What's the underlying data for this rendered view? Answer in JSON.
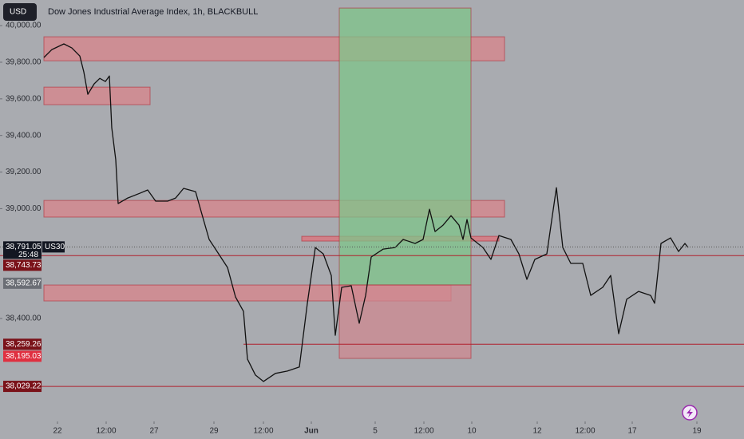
{
  "chart_data": {
    "type": "line",
    "title": "Dow Jones Industrial Average Index, 1h, BLACKBULL",
    "currency": "USD",
    "symbol": "US30",
    "countdown": "25:48",
    "color": "#111111",
    "xlim": [
      0,
      932
    ],
    "ylim": [
      37842,
      40140
    ],
    "yticks": [
      {
        "value": 40000,
        "label": "40,000.00"
      },
      {
        "value": 39800,
        "label": "39,800.00"
      },
      {
        "value": 39600,
        "label": "39,600.00"
      },
      {
        "value": 39400,
        "label": "39,400.00"
      },
      {
        "value": 39200,
        "label": "39,200.00"
      },
      {
        "value": 39000,
        "label": "39,000.00"
      },
      {
        "value": 38400,
        "label": "38,400.00"
      }
    ],
    "xticks": [
      {
        "value": 72,
        "label": "22"
      },
      {
        "value": 133,
        "label": "12:00"
      },
      {
        "value": 193,
        "label": "27"
      },
      {
        "value": 268,
        "label": "29"
      },
      {
        "value": 330,
        "label": "12:00"
      },
      {
        "value": 390,
        "label": "Jun"
      },
      {
        "value": 470,
        "label": "5"
      },
      {
        "value": 531,
        "label": "12:00"
      },
      {
        "value": 591,
        "label": "10"
      },
      {
        "value": 673,
        "label": "12"
      },
      {
        "value": 733,
        "label": "12:00"
      },
      {
        "value": 792,
        "label": "17"
      },
      {
        "value": 873,
        "label": "19"
      }
    ],
    "series": [
      {
        "color": "#111111",
        "x": [
          55,
          65,
          80,
          90,
          100,
          105,
          110,
          118,
          125,
          132,
          137,
          140,
          145,
          148,
          160,
          175,
          185,
          195,
          210,
          220,
          230,
          245,
          252,
          262,
          270,
          285,
          295,
          305,
          310,
          320,
          330,
          345,
          360,
          375,
          385,
          395,
          405,
          415,
          420,
          428,
          440,
          450,
          458,
          465,
          480,
          495,
          505,
          520,
          530,
          538,
          545,
          555,
          565,
          575,
          580,
          585,
          590,
          605,
          615,
          625,
          640,
          650,
          660,
          670,
          685,
          697,
          705,
          715,
          730,
          740,
          755,
          765,
          775,
          785,
          800,
          815,
          820,
          828,
          840,
          850,
          858,
          862
        ],
        "values": [
          39826,
          39869,
          39900,
          39878,
          39834,
          39747,
          39625,
          39682,
          39712,
          39695,
          39725,
          39442,
          39267,
          39028,
          39058,
          39084,
          39102,
          39041,
          39041,
          39058,
          39111,
          39093,
          38984,
          38832,
          38779,
          38679,
          38518,
          38439,
          38178,
          38091,
          38056,
          38100,
          38113,
          38135,
          38483,
          38788,
          38753,
          38635,
          38308,
          38570,
          38579,
          38374,
          38526,
          38736,
          38779,
          38788,
          38832,
          38810,
          38832,
          38997,
          38875,
          38910,
          38962,
          38910,
          38832,
          38941,
          38840,
          38788,
          38723,
          38853,
          38832,
          38753,
          38614,
          38723,
          38753,
          39115,
          38788,
          38701,
          38701,
          38526,
          38570,
          38635,
          38317,
          38505,
          38548,
          38526,
          38483,
          38810,
          38840,
          38766,
          38810,
          38788
        ]
      }
    ],
    "zones": [
      {
        "x": [
          55,
          632
        ],
        "y": [
          39808,
          39939
        ],
        "color": "#d9848b"
      },
      {
        "x": [
          55,
          188
        ],
        "y": [
          39568,
          39664
        ],
        "color": "#d9848b"
      },
      {
        "x": [
          55,
          632
        ],
        "y": [
          38954,
          39045
        ],
        "color": "#d9848b"
      },
      {
        "x": [
          378,
          625
        ],
        "y": [
          38823,
          38849
        ],
        "color": "#e0707a"
      },
      {
        "x": [
          55,
          565
        ],
        "y": [
          38496,
          38583
        ],
        "color": "#d9848b"
      },
      {
        "x": [
          425,
          590
        ],
        "y": [
          38583,
          40096
        ],
        "color": "#7fc48a"
      },
      {
        "x": [
          425,
          590
        ],
        "y": [
          38182,
          38583
        ],
        "color": "#cf8890"
      }
    ],
    "levels": [
      {
        "value": 38743.73,
        "from": 0
      },
      {
        "value": 38259.26,
        "from": 305
      },
      {
        "value": 38029.22,
        "from": 0
      }
    ],
    "price_labels": [
      {
        "value": 38791.05,
        "label": "38,791.05",
        "color": "#131722"
      },
      {
        "value": 38743.73,
        "label": "38,743.73",
        "color": "#7a1219"
      },
      {
        "value": 38592.67,
        "label": "38,592.67",
        "color": "#6b6e75"
      },
      {
        "value": 38259.26,
        "label": "38,259.26",
        "color": "#7a1219"
      },
      {
        "value": 38195.03,
        "label": "38,195.03",
        "color": "#e03040"
      },
      {
        "value": 38029.22,
        "label": "38,029.22",
        "color": "#7a1219"
      }
    ]
  }
}
